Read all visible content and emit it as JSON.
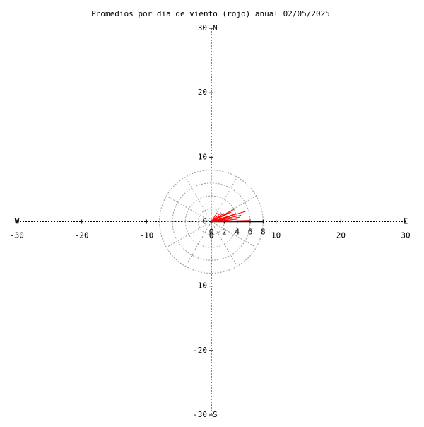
{
  "chart_data": {
    "type": "vector",
    "title": "Promedios por dia de viento (rojo) anual 02/05/2025",
    "xlim": [
      -30,
      30
    ],
    "ylim": [
      -30,
      30
    ],
    "xticks": [
      -30,
      -20,
      -10,
      0,
      10,
      20,
      30
    ],
    "yticks": [
      -30,
      -20,
      -10,
      0,
      10,
      20,
      30
    ],
    "ring_ticks": [
      0,
      2,
      4,
      6,
      8
    ],
    "compass": {
      "north": "N",
      "south": "S",
      "east": "E",
      "west": "W"
    },
    "color": "#ff0000",
    "u": [
      5.3,
      3.5,
      2.6,
      4.6,
      5.9,
      1.9,
      2.9,
      4.0,
      1.3,
      2.2,
      3.3,
      1.5,
      0.8,
      5.0,
      2.4,
      3.7,
      0.9,
      4.4,
      2.0,
      3.1
    ],
    "v": [
      1.6,
      1.9,
      1.4,
      1.0,
      0.2,
      1.3,
      0.8,
      0.4,
      1.2,
      0.5,
      0.3,
      0.9,
      0.8,
      0.1,
      0.2,
      1.2,
      1.4,
      0.7,
      1.0,
      1.5
    ]
  }
}
